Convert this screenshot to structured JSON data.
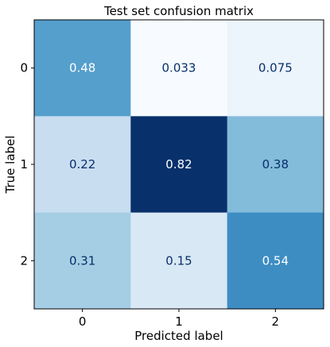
{
  "chart_data": {
    "type": "heatmap",
    "title": "Test set confusion matrix",
    "xlabel": "Predicted label",
    "ylabel": "True label",
    "x_categories": [
      "0",
      "1",
      "2"
    ],
    "y_categories": [
      "0",
      "1",
      "2"
    ],
    "values": [
      [
        0.48,
        0.033,
        0.075
      ],
      [
        0.22,
        0.82,
        0.38
      ],
      [
        0.31,
        0.15,
        0.54
      ]
    ],
    "value_labels": [
      [
        "0.48",
        "0.033",
        "0.075"
      ],
      [
        "0.22",
        "0.82",
        "0.38"
      ],
      [
        "0.31",
        "0.15",
        "0.54"
      ]
    ],
    "colormap": "Blues",
    "vmin": 0.033,
    "vmax": 0.82,
    "light_text_color": "#ffffff",
    "dark_text_color": "#08306b",
    "colorbar": false
  }
}
